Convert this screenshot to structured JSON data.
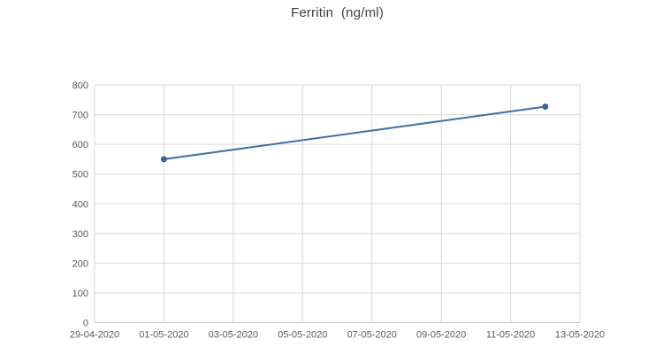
{
  "title": "Ferritin  (ng/ml)",
  "colors": {
    "background": "#FFFFFF",
    "line": "#3E6DA5",
    "marker": "#35639B",
    "gridline": "#D9D9D9",
    "axis_line": "#C6C6C6",
    "tick_label": "#595959",
    "title_text": "#404040"
  },
  "chart_data": {
    "type": "line",
    "title": "Ferritin  (ng/ml)",
    "xlabel": "",
    "ylabel": "",
    "x_axis_type": "date",
    "x_range": [
      "29-04-2020",
      "13-05-2020"
    ],
    "x_tick_labels": [
      "29-04-2020",
      "01-05-2020",
      "03-05-2020",
      "05-05-2020",
      "07-05-2020",
      "09-05-2020",
      "11-05-2020",
      "13-05-2020"
    ],
    "y_ticks": [
      0,
      100,
      200,
      300,
      400,
      500,
      600,
      700,
      800
    ],
    "ylim": [
      0,
      800
    ],
    "grid": true,
    "legend": false,
    "series": [
      {
        "name": "Ferritin (ng/ml)",
        "points": [
          {
            "date": "01-05-2020",
            "value": 550
          },
          {
            "date": "12-05-2020",
            "value": 727
          }
        ]
      }
    ]
  }
}
